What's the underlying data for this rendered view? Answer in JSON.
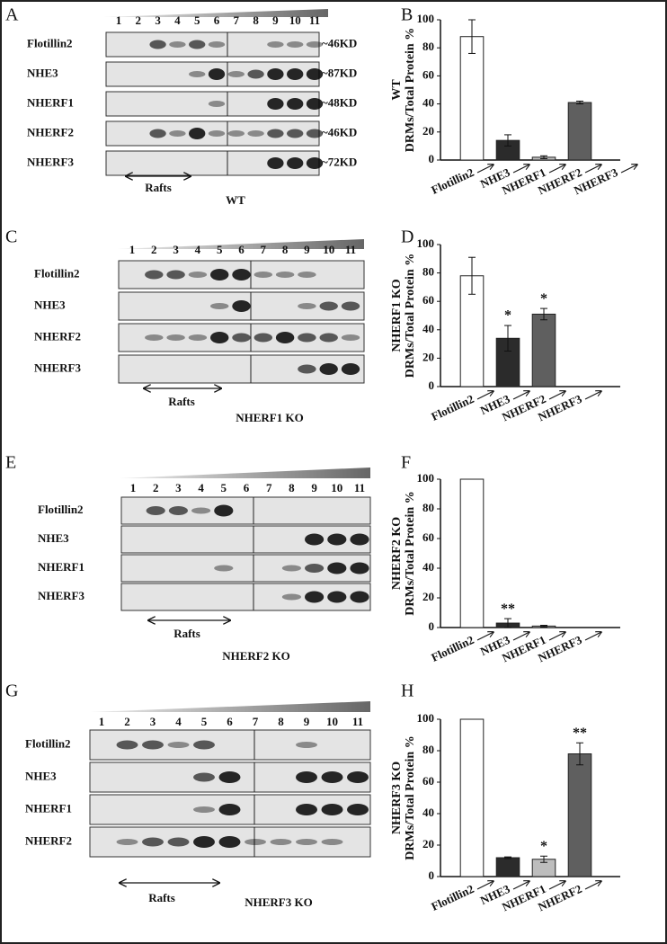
{
  "blots": [
    {
      "panel_label": "A",
      "lanes": [
        "1",
        "2",
        "3",
        "4",
        "5",
        "6",
        "7",
        "8",
        "9",
        "10",
        "11"
      ],
      "rows": [
        {
          "label": "Flotillin2",
          "size": "~46KD"
        },
        {
          "label": "NHE3",
          "size": "~87KD"
        },
        {
          "label": "NHERF1",
          "size": "~48KD"
        },
        {
          "label": "NHERF2",
          "size": "~46KD"
        },
        {
          "label": "NHERF3",
          "size": "~72KD"
        }
      ],
      "rafts": "Rafts",
      "genotype": "WT"
    },
    {
      "panel_label": "C",
      "lanes": [
        "1",
        "2",
        "3",
        "4",
        "5",
        "6",
        "7",
        "8",
        "9",
        "10",
        "11"
      ],
      "rows": [
        {
          "label": "Flotillin2"
        },
        {
          "label": "NHE3"
        },
        {
          "label": "NHERF2"
        },
        {
          "label": "NHERF3"
        }
      ],
      "rafts": "Rafts",
      "genotype": "NHERF1 KO"
    },
    {
      "panel_label": "E",
      "lanes": [
        "1",
        "2",
        "3",
        "4",
        "5",
        "6",
        "7",
        "8",
        "9",
        "10",
        "11"
      ],
      "rows": [
        {
          "label": "Flotillin2"
        },
        {
          "label": "NHE3"
        },
        {
          "label": "NHERF1"
        },
        {
          "label": "NHERF3"
        }
      ],
      "rafts": "Rafts",
      "genotype": "NHERF2 KO"
    },
    {
      "panel_label": "G",
      "lanes": [
        "1",
        "2",
        "3",
        "4",
        "5",
        "6",
        "7",
        "8",
        "9",
        "10",
        "11"
      ],
      "rows": [
        {
          "label": "Flotillin2"
        },
        {
          "label": "NHE3"
        },
        {
          "label": "NHERF1"
        },
        {
          "label": "NHERF2"
        }
      ],
      "rafts": "Rafts",
      "genotype": "NHERF3 KO"
    }
  ],
  "chart_data": [
    {
      "type": "bar",
      "panel_label": "B",
      "title": "WT",
      "ylabel": "DRMs/Total Protein %",
      "categories": [
        "Flotillin2",
        "NHE3",
        "NHERF1",
        "NHERF2",
        "NHERF3"
      ],
      "values": [
        88,
        14,
        2,
        41,
        null
      ],
      "errors": [
        12,
        4,
        1,
        1,
        null
      ],
      "colors": [
        "#ffffff",
        "#2b2b2b",
        "#bdbdbd",
        "#5f5f5f",
        "#5f5f5f"
      ],
      "ylim": [
        0,
        100
      ],
      "yticks": [
        0,
        20,
        40,
        60,
        80,
        100
      ]
    },
    {
      "type": "bar",
      "panel_label": "D",
      "title": "NHERF1 KO",
      "ylabel": "DRMs/Total Protein %",
      "categories": [
        "Flotillin2",
        "NHE3",
        "NHERF2",
        "NHERF3"
      ],
      "values": [
        78,
        34,
        51,
        null
      ],
      "errors": [
        13,
        9,
        4,
        null
      ],
      "colors": [
        "#ffffff",
        "#2b2b2b",
        "#5f5f5f",
        "#5f5f5f"
      ],
      "annotations": [
        null,
        "*",
        "*",
        null
      ],
      "ylim": [
        0,
        100
      ],
      "yticks": [
        0,
        20,
        40,
        60,
        80,
        100
      ]
    },
    {
      "type": "bar",
      "panel_label": "F",
      "title": "NHERF2 KO",
      "ylabel": "DRMs/Total Protein %",
      "categories": [
        "Flotillin2",
        "NHE3",
        "NHERF1",
        "NHERF3"
      ],
      "values": [
        100,
        3,
        1,
        null
      ],
      "errors": [
        0,
        3,
        0.5,
        null
      ],
      "colors": [
        "#ffffff",
        "#2b2b2b",
        "#bdbdbd",
        "#5f5f5f"
      ],
      "annotations": [
        null,
        "**",
        null,
        null
      ],
      "ylim": [
        0,
        100
      ],
      "yticks": [
        0,
        20,
        40,
        60,
        80,
        100
      ]
    },
    {
      "type": "bar",
      "panel_label": "H",
      "title": "NHERF3 KO",
      "ylabel": "DRMs/Total Protein %",
      "categories": [
        "Flotillin2",
        "NHE3",
        "NHERF1",
        "NHERF2"
      ],
      "values": [
        100,
        12,
        11,
        78
      ],
      "errors": [
        0,
        0.5,
        2,
        7
      ],
      "colors": [
        "#ffffff",
        "#2b2b2b",
        "#bdbdbd",
        "#5f5f5f"
      ],
      "annotations": [
        null,
        null,
        "*",
        "**"
      ],
      "ylim": [
        0,
        100
      ],
      "yticks": [
        0,
        20,
        40,
        60,
        80,
        100
      ]
    }
  ]
}
